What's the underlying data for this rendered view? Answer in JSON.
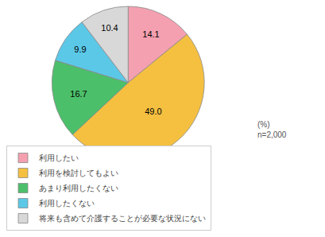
{
  "chart_data": {
    "type": "pie",
    "categories": [
      "利用したい",
      "利用を検討してもよい",
      "あまり利用したくない",
      "利用したくない",
      "将来も含めて介護することが必要な状況にない"
    ],
    "values": [
      14.1,
      49.0,
      16.7,
      9.9,
      10.4
    ],
    "value_labels": [
      "14.1",
      "49.0",
      "16.7",
      "9.9",
      "10.4"
    ],
    "data_labels": true,
    "colors": [
      "#f4a0b0",
      "#f5c040",
      "#4cbf6a",
      "#5bc8e8",
      "#d8d8d8"
    ],
    "annotation": "(%)\nn=2,000",
    "legend": "bottom"
  }
}
